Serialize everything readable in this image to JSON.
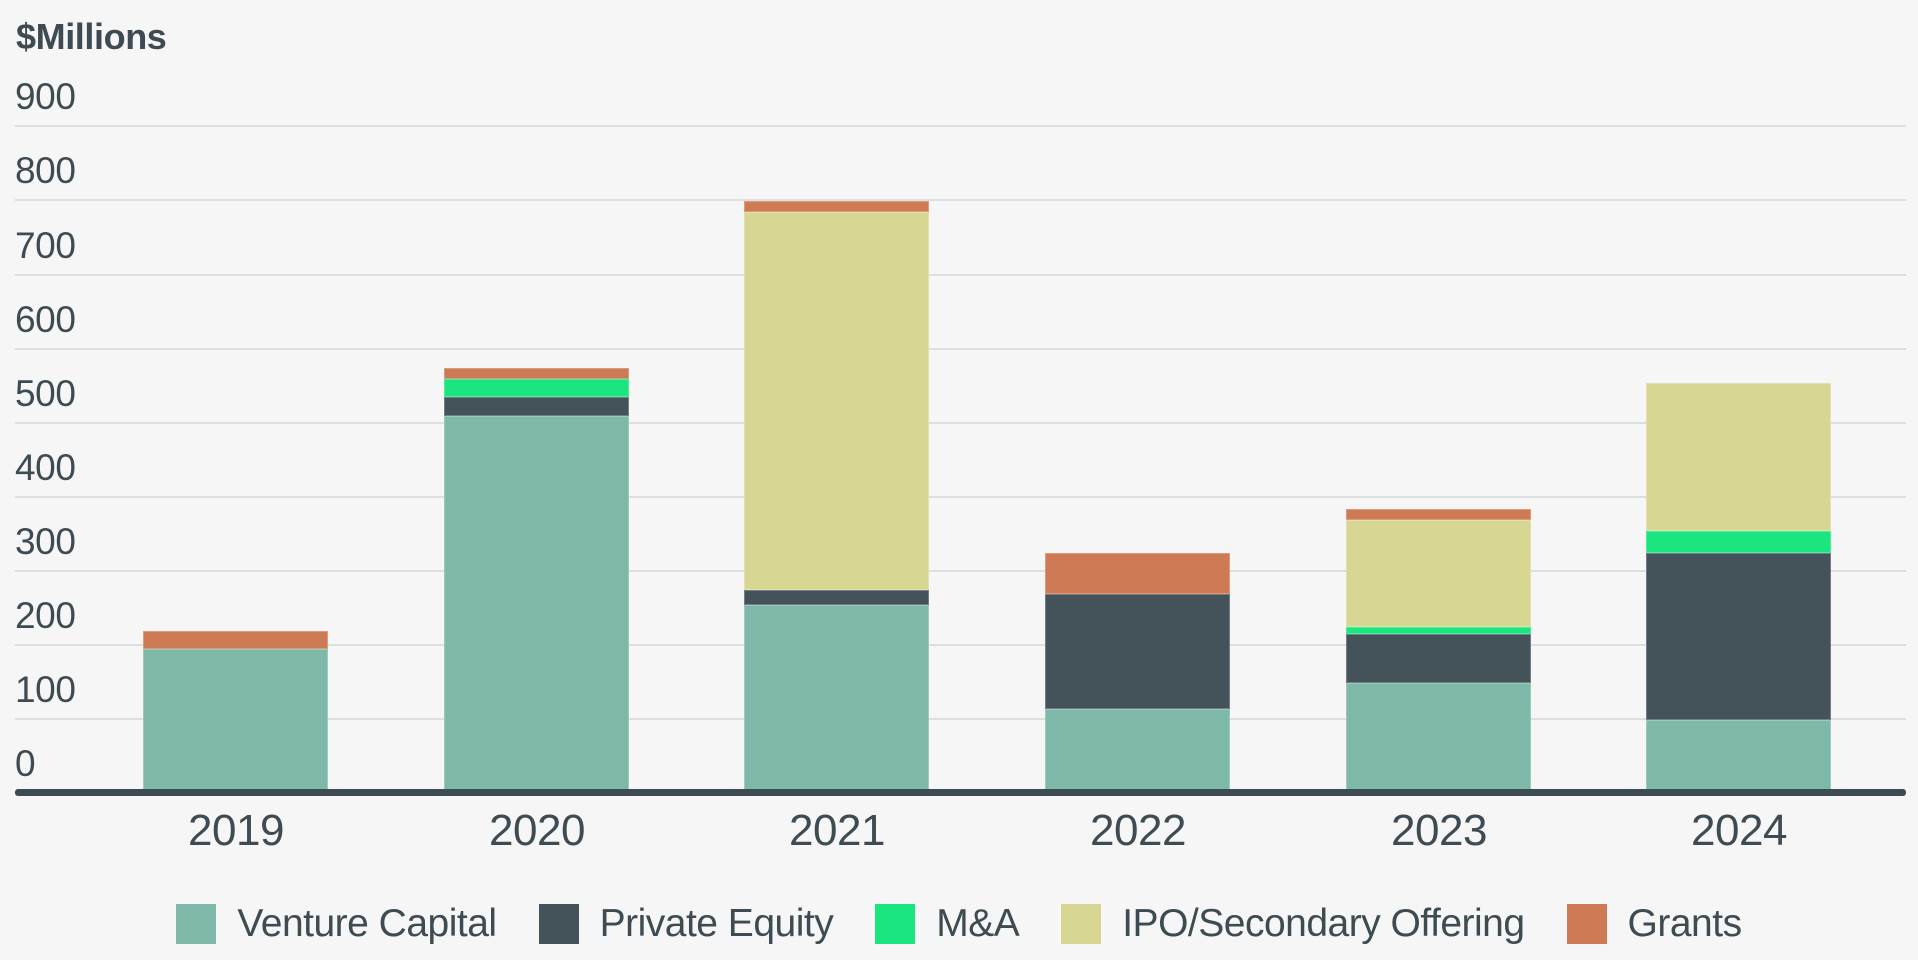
{
  "chart_data": {
    "type": "bar",
    "stacked": true,
    "title": "$Millions",
    "ylabel": "$Millions",
    "xlabel": "",
    "categories": [
      "2019",
      "2020",
      "2021",
      "2022",
      "2023",
      "2024"
    ],
    "series": [
      {
        "name": "Venture Capital",
        "color": "#7eb8a8",
        "values": [
          190,
          505,
          250,
          110,
          145,
          95
        ]
      },
      {
        "name": "Private Equity",
        "color": "#44525a",
        "values": [
          0,
          25,
          20,
          155,
          65,
          225
        ]
      },
      {
        "name": "M&A",
        "color": "#1ae57f",
        "values": [
          0,
          25,
          0,
          0,
          10,
          30
        ]
      },
      {
        "name": "IPO/Secondary Offering",
        "color": "#d8d693",
        "values": [
          0,
          0,
          510,
          0,
          145,
          200
        ]
      },
      {
        "name": "Grants",
        "color": "#ce7a55",
        "values": [
          25,
          15,
          15,
          55,
          15,
          0
        ]
      }
    ],
    "totals": [
      215,
      570,
      795,
      320,
      380,
      550
    ],
    "y_axis": {
      "min": 0,
      "max": 900,
      "tick_interval": 100,
      "tick_labels": [
        "0",
        "100",
        "200",
        "300",
        "400",
        "500",
        "600",
        "700",
        "800",
        "900"
      ]
    },
    "grid": true,
    "legend_position": "bottom",
    "legend_entries": [
      "Venture Capital",
      "Private Equity",
      "M&A",
      "IPO/Secondary Offering",
      "Grants"
    ]
  },
  "colors": {
    "background": "#f5f6f5",
    "text": "#3e4b52",
    "gridline": "#dcdfe0",
    "axis_line": "#3e4b52"
  }
}
